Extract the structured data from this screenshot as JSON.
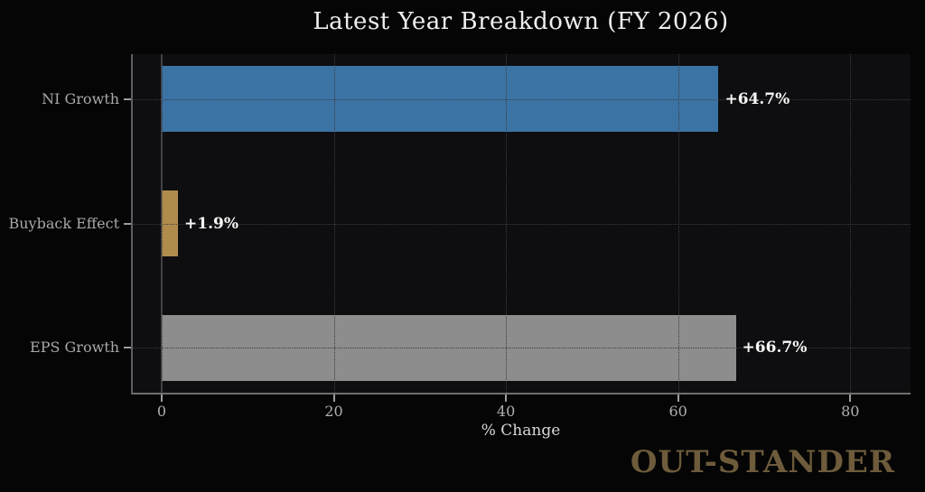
{
  "title": "Latest Year Breakdown (FY 2026)",
  "watermark": "OUT-STANDER",
  "chart_data": {
    "type": "bar",
    "orientation": "horizontal",
    "title": "Latest Year Breakdown (FY 2026)",
    "xlabel": "% Change",
    "categories": [
      "NI Growth",
      "Buyback Effect",
      "EPS Growth"
    ],
    "values": [
      64.7,
      1.9,
      66.7
    ],
    "value_labels": [
      "+64.7%",
      "+1.9%",
      "+66.7%"
    ],
    "bar_colors": [
      "#3b73a4",
      "#b08c4c",
      "#8d8d8d"
    ],
    "xticks": [
      0,
      20,
      40,
      60,
      80
    ],
    "xtick_labels": [
      "0",
      "20",
      "40",
      "60",
      "80"
    ],
    "xlim": [
      -3.35,
      87.0
    ],
    "grid": true,
    "grid_style": "dotted",
    "legend": false,
    "background": "#050505",
    "plot_background": "#0e0e10",
    "text_color": "#a8a8a8",
    "title_color": "#efefef",
    "value_label_color": "#f7f7f7",
    "watermark_color": "#6d5b3b"
  }
}
